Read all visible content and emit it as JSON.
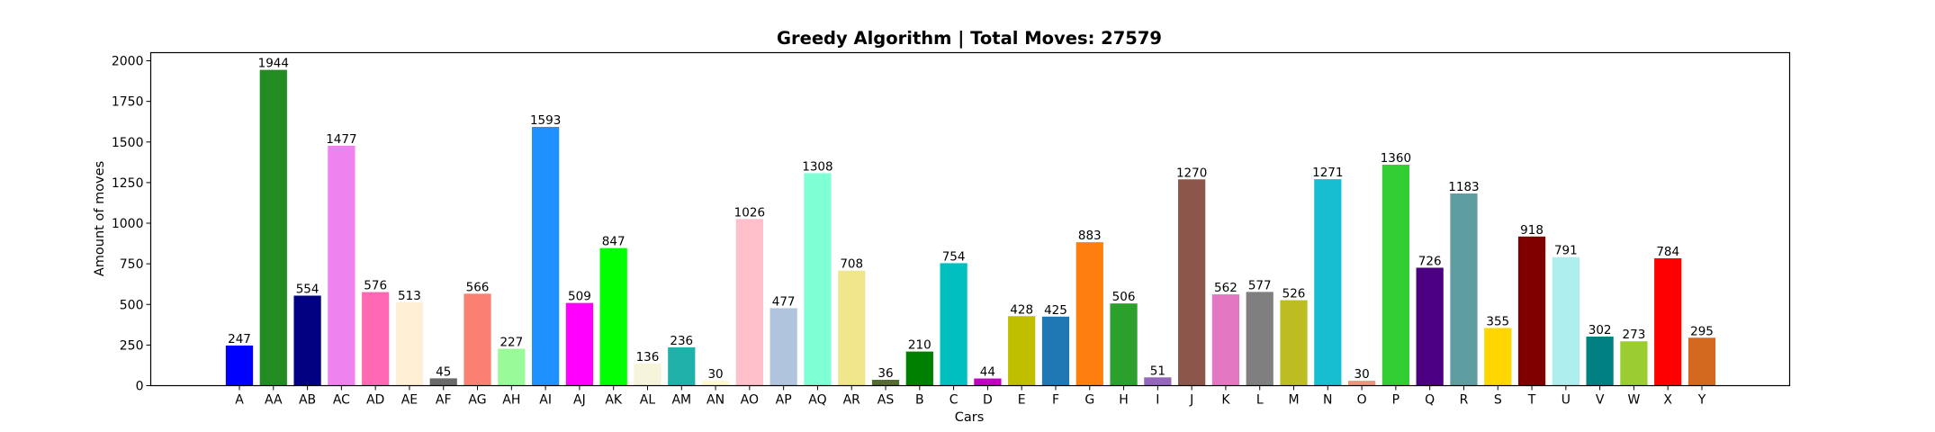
{
  "chart_data": {
    "type": "bar",
    "title": "Greedy Algorithm | Total Moves: 27579",
    "xlabel": "Cars",
    "ylabel": "Amount of moves",
    "ylim": [
      0,
      2050
    ],
    "yticks": [
      0,
      250,
      500,
      750,
      1000,
      1250,
      1500,
      1750,
      2000
    ],
    "grid": false,
    "categories": [
      "A",
      "AA",
      "AB",
      "AC",
      "AD",
      "AE",
      "AF",
      "AG",
      "AH",
      "AI",
      "AJ",
      "AK",
      "AL",
      "AM",
      "AN",
      "AO",
      "AP",
      "AQ",
      "AR",
      "AS",
      "B",
      "C",
      "D",
      "E",
      "F",
      "G",
      "H",
      "I",
      "J",
      "K",
      "L",
      "M",
      "N",
      "O",
      "P",
      "Q",
      "R",
      "S",
      "T",
      "U",
      "V",
      "W",
      "X",
      "Y"
    ],
    "values": [
      247,
      1944,
      554,
      1477,
      576,
      513,
      45,
      566,
      227,
      1593,
      509,
      847,
      136,
      236,
      30,
      1026,
      477,
      1308,
      708,
      36,
      210,
      754,
      44,
      428,
      425,
      883,
      506,
      51,
      1270,
      562,
      577,
      526,
      1271,
      30,
      1360,
      726,
      1183,
      355,
      918,
      791,
      302,
      273,
      784,
      295
    ],
    "colors": [
      "#0000ff",
      "#228b22",
      "#000080",
      "#ee82ee",
      "#ff69b4",
      "#ffefd5",
      "#696969",
      "#fa8072",
      "#98fb98",
      "#1e90ff",
      "#ff00ff",
      "#00ff00",
      "#f5f5dc",
      "#20b2aa",
      "#fffacd",
      "#ffc0cb",
      "#b0c4de",
      "#7fffd4",
      "#f0e68c",
      "#556b2f",
      "#008000",
      "#00bfbf",
      "#bf00bf",
      "#bfbf00",
      "#1f77b4",
      "#ff7f0e",
      "#2ca02c",
      "#9467bd",
      "#8c564b",
      "#e377c2",
      "#7f7f7f",
      "#bcbd22",
      "#17becf",
      "#e9967a",
      "#32cd32",
      "#4b0082",
      "#5f9ea0",
      "#ffd700",
      "#800000",
      "#afeeee",
      "#008080",
      "#9acd32",
      "#ff0000",
      "#d2691e"
    ]
  }
}
